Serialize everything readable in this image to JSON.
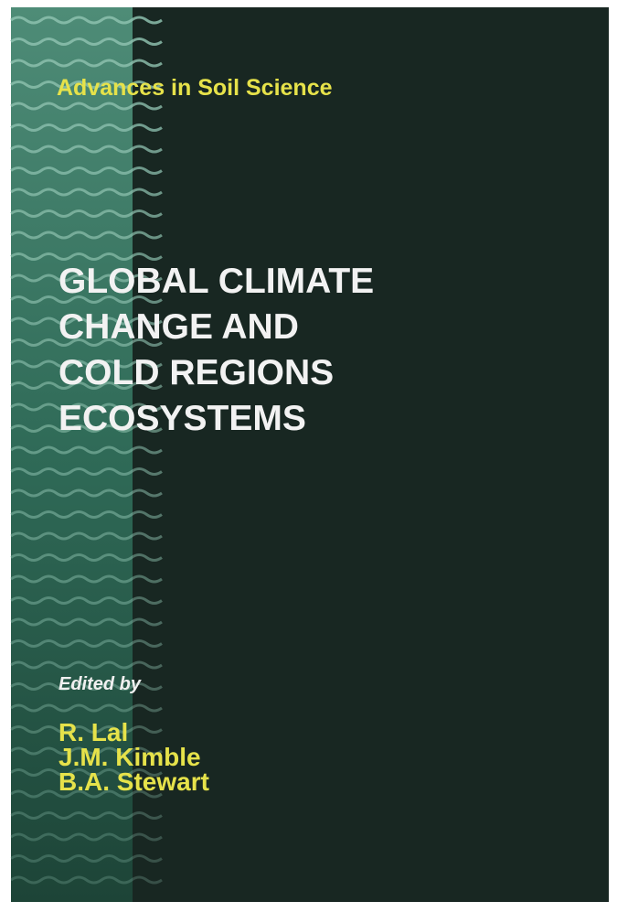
{
  "cover": {
    "series": "Advances in Soil Science",
    "title_lines": [
      "GLOBAL CLIMATE",
      "CHANGE AND",
      "COLD REGIONS",
      "ECOSYSTEMS"
    ],
    "edited_by": "Edited by",
    "editors": [
      "R. Lal",
      "J.M. Kimble",
      "B.A. Stewart"
    ]
  }
}
